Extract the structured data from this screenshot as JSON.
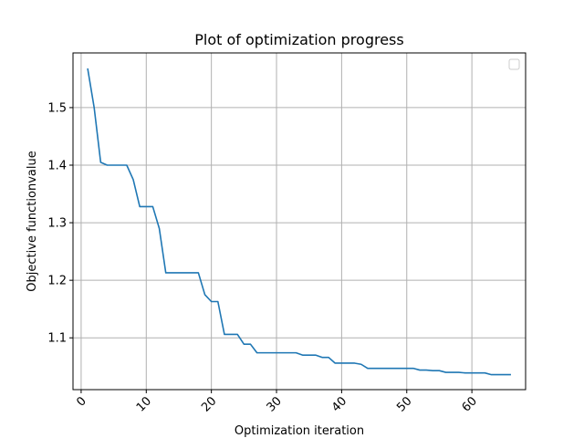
{
  "chart_data": {
    "type": "line",
    "title": "Plot of optimization progress",
    "xlabel": "Optimization iteration",
    "ylabel": "Objective functionvalue",
    "xlim": [
      -1.25,
      68.25
    ],
    "ylim": [
      1.01,
      1.595
    ],
    "xticks": [
      0,
      10,
      20,
      30,
      40,
      50,
      60
    ],
    "yticks": [
      1.1,
      1.2,
      1.3,
      1.4,
      1.5
    ],
    "grid": true,
    "legend": "top-right",
    "series": [
      {
        "color": "#1f77b4",
        "x": [
          1,
          2,
          3,
          4,
          5,
          6,
          7,
          8,
          9,
          10,
          11,
          12,
          13,
          14,
          15,
          16,
          17,
          18,
          19,
          20,
          21,
          22,
          23,
          24,
          25,
          26,
          27,
          28,
          29,
          30,
          31,
          32,
          33,
          34,
          35,
          36,
          37,
          38,
          39,
          40,
          41,
          42,
          43,
          44,
          45,
          46,
          47,
          48,
          49,
          50,
          51,
          52,
          53,
          54,
          55,
          56,
          57,
          58,
          59,
          60,
          61,
          62,
          63,
          64,
          65,
          66
        ],
        "y": [
          1.568,
          1.5,
          1.405,
          1.4,
          1.4,
          1.4,
          1.4,
          1.375,
          1.328,
          1.328,
          1.328,
          1.29,
          1.213,
          1.213,
          1.213,
          1.213,
          1.213,
          1.213,
          1.175,
          1.163,
          1.163,
          1.106,
          1.106,
          1.106,
          1.089,
          1.089,
          1.074,
          1.074,
          1.074,
          1.074,
          1.074,
          1.074,
          1.074,
          1.07,
          1.07,
          1.07,
          1.066,
          1.066,
          1.056,
          1.056,
          1.056,
          1.056,
          1.054,
          1.047,
          1.047,
          1.047,
          1.047,
          1.047,
          1.047,
          1.047,
          1.047,
          1.044,
          1.044,
          1.043,
          1.043,
          1.04,
          1.04,
          1.04,
          1.039,
          1.039,
          1.039,
          1.039,
          1.036,
          1.036,
          1.036,
          1.036
        ]
      }
    ]
  }
}
